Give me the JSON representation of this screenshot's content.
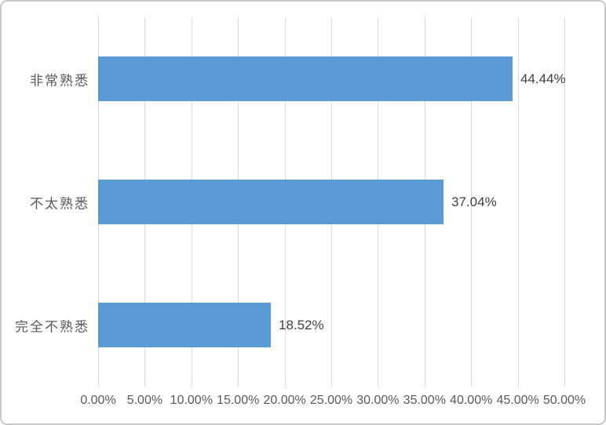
{
  "frame": {
    "background": "#FFFFFF",
    "border_color": "#C9C9C9"
  },
  "chart_data": {
    "type": "bar",
    "orientation": "horizontal",
    "title": "",
    "categories": [
      "非常熟悉",
      "不太熟悉",
      "完全不熟悉"
    ],
    "values": [
      44.44,
      37.04,
      18.52
    ],
    "data_labels": [
      "44.44%",
      "37.04%",
      "18.52%"
    ],
    "x_tick_labels": [
      "0.00%",
      "5.00%",
      "10.00%",
      "15.00%",
      "20.00%",
      "25.00%",
      "30.00%",
      "35.00%",
      "40.00%",
      "45.00%",
      "50.00%"
    ],
    "x_tick_values": [
      0,
      5,
      10,
      15,
      20,
      25,
      30,
      35,
      40,
      45,
      50
    ],
    "xlim": [
      0,
      50
    ],
    "grid": true,
    "legend": false,
    "bar_color": "#5B9BD5",
    "gridline_color": "#D9D9D9",
    "axis_text_color": "#595959",
    "category_text_color": "#595959",
    "data_label_color": "#404040"
  }
}
